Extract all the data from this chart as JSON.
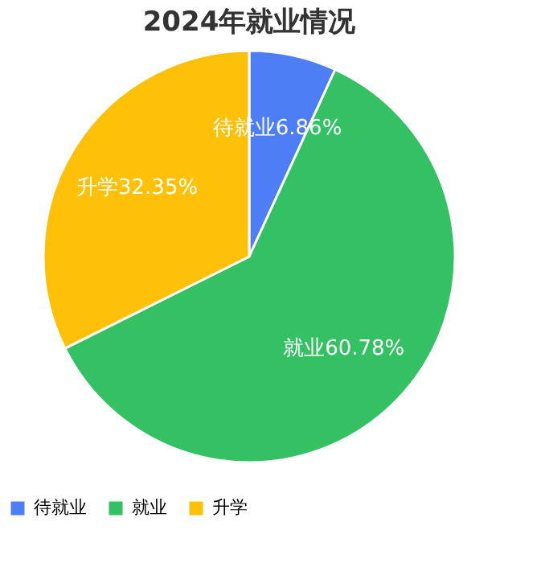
{
  "chart_data": {
    "type": "pie",
    "title": "2024年就业情况",
    "categories": [
      "待就业",
      "就业",
      "升学"
    ],
    "values": [
      6.86,
      60.78,
      32.35
    ],
    "colors": [
      "#4e7ef5",
      "#33c163",
      "#ffc107"
    ],
    "value_labels": [
      "待就业6.86%",
      "就业60.78%",
      "升学32.35%"
    ],
    "legend": "bottom"
  }
}
